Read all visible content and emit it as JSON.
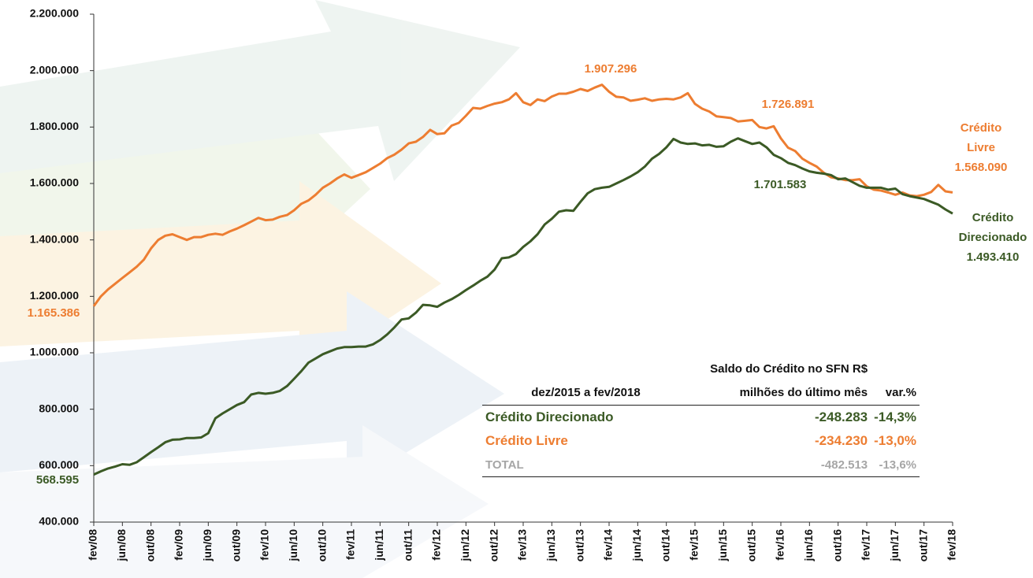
{
  "chart_data": {
    "type": "line",
    "categories": [
      "fev/08",
      null,
      null,
      null,
      "jun/08",
      null,
      null,
      null,
      "out/08",
      null,
      null,
      null,
      "fev/09",
      null,
      null,
      null,
      "jun/09",
      null,
      null,
      null,
      "out/09",
      null,
      null,
      null,
      "fev/10",
      null,
      null,
      null,
      "jun/10",
      null,
      null,
      null,
      "out/10",
      null,
      null,
      null,
      "fev/11",
      null,
      null,
      null,
      "jun/11",
      null,
      null,
      null,
      "out/11",
      null,
      null,
      null,
      "fev/12",
      null,
      null,
      null,
      "jun/12",
      null,
      null,
      null,
      "out/12",
      null,
      null,
      null,
      "fev/13",
      null,
      null,
      null,
      "jun/13",
      null,
      null,
      null,
      "out/13",
      null,
      null,
      null,
      "fev/14",
      null,
      null,
      null,
      "jun/14",
      null,
      null,
      null,
      "out/14",
      null,
      null,
      null,
      "fev/15",
      null,
      null,
      null,
      "jun/15",
      null,
      null,
      null,
      "out/15",
      null,
      null,
      null,
      "fev/16",
      null,
      null,
      null,
      "jun/16",
      null,
      null,
      null,
      "out/16",
      null,
      null,
      null,
      "fev/17",
      null,
      null,
      null,
      "jun/17",
      null,
      null,
      null,
      "out/17",
      null,
      null,
      null,
      "fev/18"
    ],
    "series": [
      {
        "name": "Crédito Livre",
        "color": "#ed7d31",
        "values": [
          1165386,
          1200000,
          1225000,
          1245000,
          1265000,
          1285000,
          1305000,
          1330000,
          1370000,
          1400000,
          1415000,
          1420000,
          1410000,
          1400000,
          1410000,
          1410000,
          1418000,
          1422000,
          1418000,
          1430000,
          1440000,
          1452000,
          1465000,
          1478000,
          1470000,
          1472000,
          1482000,
          1488000,
          1505000,
          1528000,
          1540000,
          1560000,
          1585000,
          1600000,
          1618000,
          1632000,
          1620000,
          1630000,
          1640000,
          1655000,
          1670000,
          1690000,
          1702000,
          1720000,
          1742000,
          1748000,
          1765000,
          1790000,
          1775000,
          1778000,
          1805000,
          1815000,
          1840000,
          1868000,
          1865000,
          1875000,
          1883000,
          1888000,
          1898000,
          1920000,
          1888000,
          1878000,
          1898000,
          1892000,
          1908000,
          1918000,
          1918000,
          1925000,
          1935000,
          1928000,
          1940000,
          1950000,
          1925000,
          1907296,
          1905000,
          1893000,
          1897000,
          1902000,
          1893000,
          1898000,
          1900000,
          1898000,
          1905000,
          1920000,
          1882000,
          1865000,
          1855000,
          1838000,
          1835000,
          1832000,
          1820000,
          1822000,
          1825000,
          1800000,
          1795000,
          1803000,
          1760000,
          1726891,
          1715000,
          1688000,
          1673000,
          1660000,
          1638000,
          1622000,
          1618000,
          1612000,
          1612000,
          1615000,
          1590000,
          1578000,
          1575000,
          1568000,
          1560000,
          1568000,
          1558000,
          1555000,
          1560000,
          1570000,
          1595000,
          1572000,
          1568090
        ],
        "value_labels": [
          "1.165.386",
          null,
          null,
          null,
          null,
          null,
          null,
          null,
          null,
          null,
          null,
          null,
          null,
          null,
          null,
          null,
          null,
          null,
          null,
          null,
          null,
          null,
          null,
          null,
          null,
          null,
          null,
          null,
          null,
          null,
          null,
          null,
          null,
          null,
          null,
          null,
          null,
          null,
          null,
          null,
          null,
          null,
          null,
          null,
          null,
          null,
          null,
          null,
          null,
          null,
          null,
          null,
          null,
          null,
          null,
          null,
          null,
          null,
          null,
          null,
          null,
          null,
          null,
          null,
          null,
          null,
          null,
          null,
          null,
          null,
          null,
          null,
          null,
          "1.907.296",
          null,
          null,
          null,
          null,
          null,
          null,
          null,
          null,
          null,
          null,
          null,
          null,
          null,
          null,
          null,
          null,
          null,
          null,
          null,
          null,
          null,
          null,
          null,
          "1.726.891",
          null,
          null,
          null,
          null,
          null,
          null,
          null,
          null,
          null,
          null,
          null,
          null,
          null,
          null,
          null,
          null,
          null,
          null,
          null,
          null,
          null,
          null,
          "1.568.090"
        ]
      },
      {
        "name": "Crédito Direcionado",
        "color": "#3b5a25",
        "values": [
          568595,
          580000,
          590000,
          597000,
          605000,
          603000,
          612000,
          630000,
          648000,
          665000,
          683000,
          692000,
          693000,
          698000,
          698000,
          700000,
          715000,
          768000,
          785000,
          800000,
          815000,
          825000,
          852000,
          858000,
          855000,
          858000,
          865000,
          882000,
          908000,
          935000,
          965000,
          980000,
          995000,
          1005000,
          1015000,
          1020000,
          1020000,
          1022000,
          1022000,
          1030000,
          1045000,
          1065000,
          1090000,
          1118000,
          1122000,
          1142000,
          1170000,
          1168000,
          1163000,
          1178000,
          1190000,
          1205000,
          1222000,
          1238000,
          1255000,
          1270000,
          1295000,
          1335000,
          1338000,
          1350000,
          1375000,
          1395000,
          1420000,
          1455000,
          1475000,
          1500000,
          1505000,
          1503000,
          1535000,
          1565000,
          1580000,
          1585000,
          1588000,
          1600000,
          1612000,
          1625000,
          1640000,
          1660000,
          1688000,
          1705000,
          1728000,
          1758000,
          1745000,
          1740000,
          1742000,
          1735000,
          1737000,
          1730000,
          1732000,
          1748000,
          1760000,
          1750000,
          1740000,
          1745000,
          1728000,
          1701583,
          1690000,
          1673000,
          1665000,
          1653000,
          1643000,
          1638000,
          1635000,
          1630000,
          1615000,
          1618000,
          1605000,
          1592000,
          1585000,
          1585000,
          1585000,
          1578000,
          1582000,
          1562000,
          1555000,
          1550000,
          1545000,
          1535000,
          1525000,
          1508000,
          1493410
        ],
        "value_labels": [
          "568.595",
          null,
          null,
          null,
          null,
          null,
          null,
          null,
          null,
          null,
          null,
          null,
          null,
          null,
          null,
          null,
          null,
          null,
          null,
          null,
          null,
          null,
          null,
          null,
          null,
          null,
          null,
          null,
          null,
          null,
          null,
          null,
          null,
          null,
          null,
          null,
          null,
          null,
          null,
          null,
          null,
          null,
          null,
          null,
          null,
          null,
          null,
          null,
          null,
          null,
          null,
          null,
          null,
          null,
          null,
          null,
          null,
          null,
          null,
          null,
          null,
          null,
          null,
          null,
          null,
          null,
          null,
          null,
          null,
          null,
          null,
          null,
          null,
          null,
          null,
          null,
          null,
          null,
          null,
          null,
          null,
          null,
          null,
          null,
          null,
          null,
          null,
          null,
          null,
          null,
          null,
          null,
          null,
          null,
          null,
          "1.701.583",
          null,
          null,
          null,
          null,
          null,
          null,
          null,
          null,
          null,
          null,
          null,
          null,
          null,
          null,
          null,
          null,
          null,
          null,
          null,
          null,
          null,
          null,
          null,
          null,
          "1.493.410"
        ]
      }
    ],
    "ylim": [
      400000,
      2200000
    ],
    "yticks": [
      {
        "value": 400000,
        "label": "400.000"
      },
      {
        "value": 600000,
        "label": "600.000"
      },
      {
        "value": 800000,
        "label": "800.000"
      },
      {
        "value": 1000000,
        "label": "1.000.000"
      },
      {
        "value": 1200000,
        "label": "1.200.000"
      },
      {
        "value": 1400000,
        "label": "1.400.000"
      },
      {
        "value": 1600000,
        "label": "1.600.000"
      },
      {
        "value": 1800000,
        "label": "1.800.000"
      },
      {
        "value": 2000000,
        "label": "2.000.000"
      },
      {
        "value": 2200000,
        "label": "2.200.000"
      }
    ],
    "grid": false
  },
  "table": {
    "header": [
      "dez/2015 a fev/2018",
      "Saldo do Crédito no SFN R$ milhões do último mês",
      "var.%"
    ],
    "rows": [
      [
        "Crédito Direcionado",
        "-248.283",
        "-14,3%"
      ],
      [
        "Crédito Livre",
        "-234.230",
        "-13,0%"
      ],
      [
        "TOTAL",
        "-482.513",
        "-13,6%"
      ]
    ]
  }
}
